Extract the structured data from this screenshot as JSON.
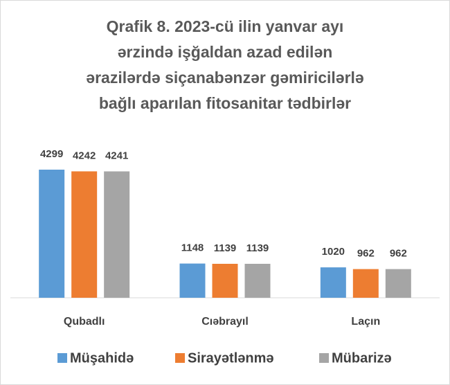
{
  "chart_data": {
    "type": "bar",
    "title": [
      "Qrafik 8. 2023-cü ilin yanvar ayı",
      "ərzində işğaldan azad edilən",
      "ərazilərdə siçanabənzər gəmiricilərlə",
      "bağlı aparılan fitosanitar tədbirlər"
    ],
    "categories": [
      "Qubadlı",
      "Cıəbrayıl",
      "Laçın"
    ],
    "series": [
      {
        "name": "Müşahidə",
        "color": "#5b9bd5",
        "values": [
          4299,
          1148,
          1020
        ]
      },
      {
        "name": "Sirayətlənmə",
        "color": "#ed7d31",
        "values": [
          4242,
          1139,
          962
        ]
      },
      {
        "name": "Mübarizə",
        "color": "#a5a5a5",
        "values": [
          4241,
          1139,
          962
        ]
      }
    ]
  }
}
